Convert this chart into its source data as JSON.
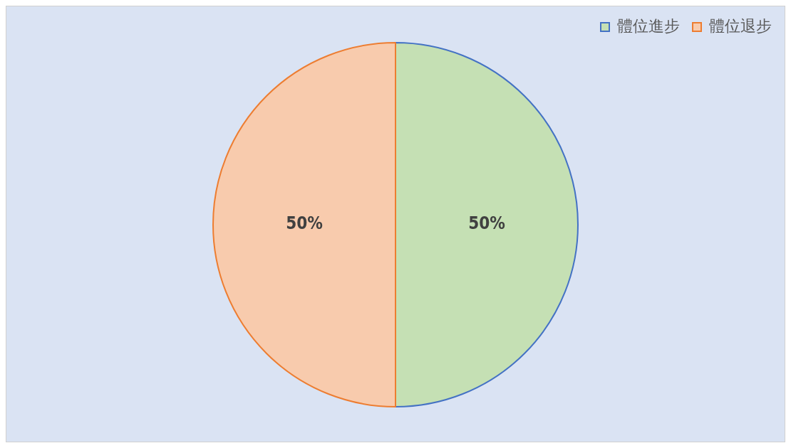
{
  "chart_data": {
    "type": "pie",
    "categories": [
      "體位進步",
      "體位退步"
    ],
    "values": [
      50,
      50
    ],
    "colors": [
      "#c5e0b4",
      "#f8cbad"
    ],
    "value_labels": [
      "50%",
      "50%"
    ],
    "legend": "top right"
  }
}
